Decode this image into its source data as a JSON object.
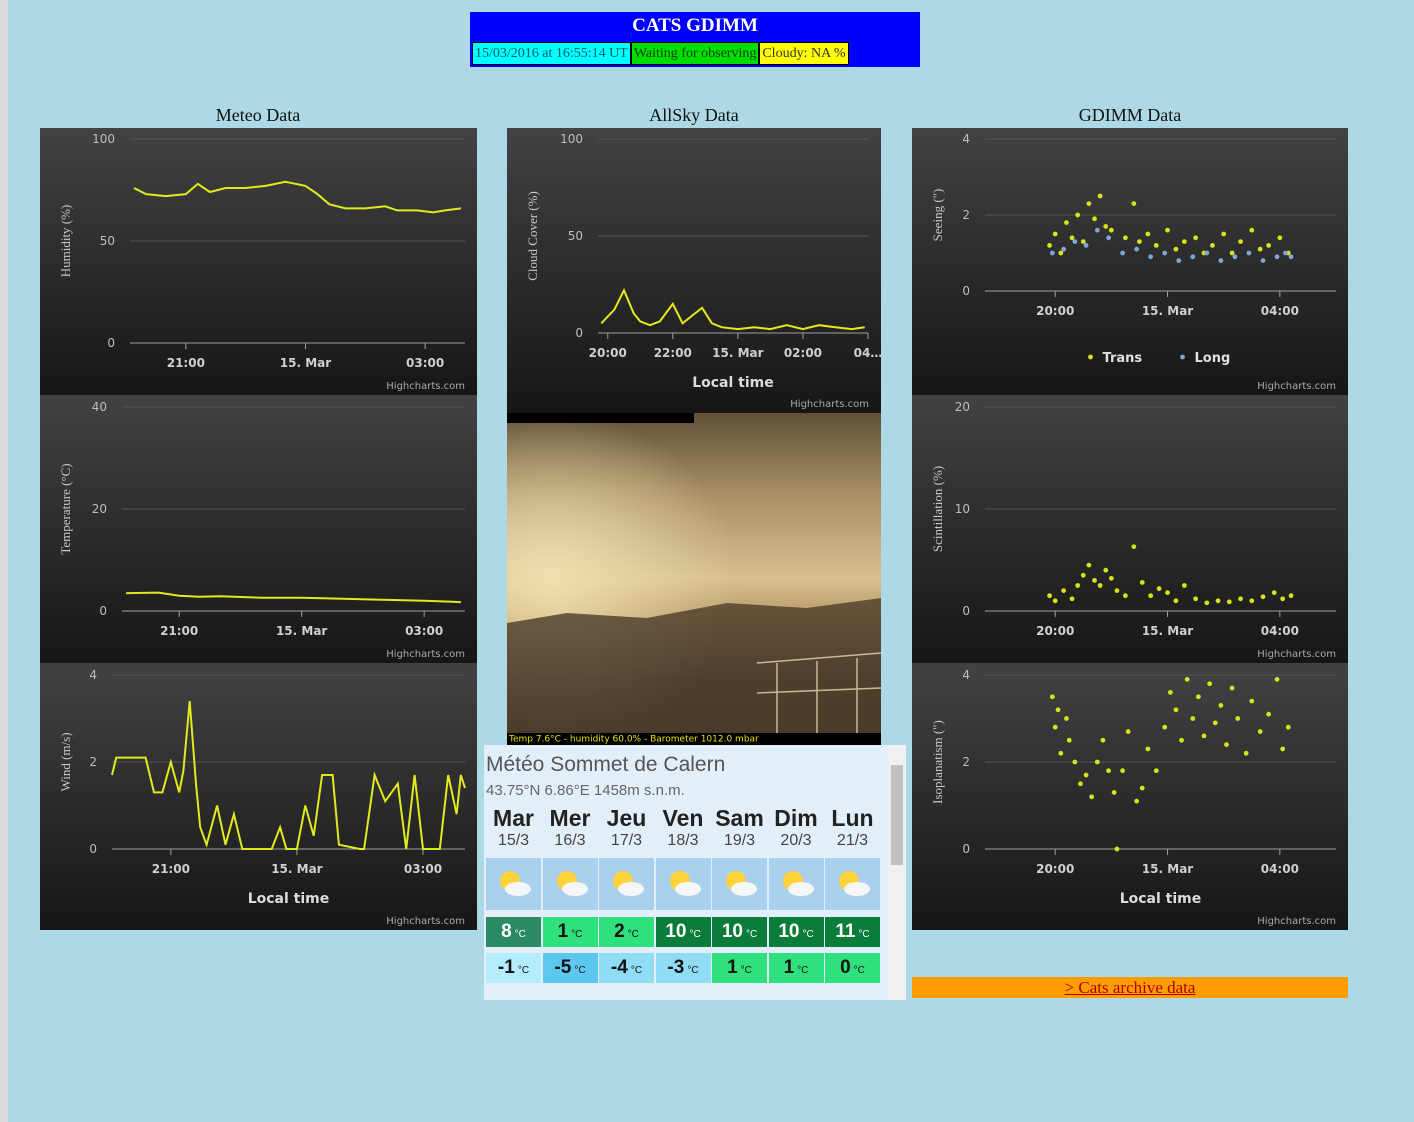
{
  "header": {
    "title": "CATS GDIMM",
    "date": "15/03/2016 at 16:55:14 UT",
    "status": "Waiting for observing",
    "cloudy": "Cloudy: NA %"
  },
  "sections": [
    "Meteo Data",
    "AllSky Data",
    "GDIMM Data"
  ],
  "allsky": {
    "caption": "Temp 7.6°C - humidity 60.0% - Barometer 1012.0 mbar"
  },
  "chart_data": [
    {
      "type": "line",
      "y_title": "Humidity (%)",
      "credit": "Highcharts.com",
      "ylim": [
        0,
        100
      ],
      "yticks": [
        0,
        50,
        100
      ],
      "xlim": [
        19.6,
        28
      ],
      "xticks": [
        {
          "value": 21,
          "label": "21:00"
        },
        {
          "value": 24,
          "label": "15. Mar"
        },
        {
          "value": 27,
          "label": "03:00"
        }
      ],
      "series": [
        {
          "color": "#e3ea1c",
          "x": [
            19.7,
            20.0,
            20.5,
            21.0,
            21.3,
            21.6,
            22.0,
            22.5,
            23.0,
            23.5,
            24.0,
            24.3,
            24.6,
            25.0,
            25.5,
            26.0,
            26.3,
            26.8,
            27.2,
            27.5,
            27.9
          ],
          "values": [
            76,
            73,
            72,
            73,
            78,
            74,
            76,
            76,
            77,
            79,
            77,
            73,
            68,
            66,
            66,
            67,
            65,
            65,
            64,
            65,
            66
          ]
        }
      ]
    },
    {
      "type": "line",
      "y_title": "Temperature (°C)",
      "credit": "Highcharts.com",
      "ylim": [
        0,
        40
      ],
      "yticks": [
        0,
        20,
        40
      ],
      "xlim": [
        19.6,
        28
      ],
      "xticks": [
        {
          "value": 21,
          "label": "21:00"
        },
        {
          "value": 24,
          "label": "15. Mar"
        },
        {
          "value": 27,
          "label": "03:00"
        }
      ],
      "series": [
        {
          "color": "#e3ea1c",
          "x": [
            19.7,
            20.5,
            21.0,
            21.5,
            22.0,
            23.0,
            24.0,
            25.0,
            26.0,
            27.0,
            27.7,
            27.9
          ],
          "values": [
            3.5,
            3.6,
            3.0,
            2.8,
            2.9,
            2.6,
            2.6,
            2.4,
            2.2,
            2.0,
            1.8,
            1.7
          ]
        }
      ]
    },
    {
      "type": "line",
      "y_title": "Wind (m/s)",
      "x_title": "Local time",
      "credit": "Highcharts.com",
      "ylim": [
        0,
        4
      ],
      "yticks": [
        0,
        2,
        4
      ],
      "xlim": [
        19.6,
        28
      ],
      "xticks": [
        {
          "value": 21,
          "label": "21:00"
        },
        {
          "value": 24,
          "label": "15. Mar"
        },
        {
          "value": 27,
          "label": "03:00"
        }
      ],
      "series": [
        {
          "color": "#e3ea1c",
          "x": [
            19.6,
            19.7,
            20.4,
            20.6,
            20.8,
            21.0,
            21.2,
            21.3,
            21.45,
            21.6,
            21.7,
            21.85,
            22.1,
            22.3,
            22.5,
            22.7,
            23.4,
            23.6,
            23.75,
            24.0,
            24.2,
            24.4,
            24.6,
            24.85,
            25.0,
            25.5,
            25.6,
            25.85,
            26.1,
            26.4,
            26.6,
            26.8,
            27.0,
            27.4,
            27.6,
            27.8,
            27.9,
            28.0
          ],
          "values": [
            1.7,
            2.1,
            2.1,
            1.3,
            1.3,
            2.0,
            1.3,
            1.8,
            3.4,
            1.5,
            0.5,
            0.1,
            1.0,
            0.1,
            0.8,
            0,
            0,
            0.5,
            0,
            0,
            1.0,
            0.3,
            1.7,
            1.7,
            0.1,
            0,
            0,
            1.7,
            1.1,
            1.5,
            0,
            1.7,
            0,
            0,
            1.7,
            0.8,
            1.7,
            1.4
          ]
        }
      ]
    },
    {
      "type": "line",
      "y_title": "Cloud Cover (%)",
      "x_title": "Local time",
      "credit": "Highcharts.com",
      "ylim": [
        0,
        100
      ],
      "yticks": [
        0,
        50,
        100
      ],
      "xlim": [
        19.7,
        28
      ],
      "xticks": [
        {
          "value": 20,
          "label": "20:00"
        },
        {
          "value": 22,
          "label": "22:00"
        },
        {
          "value": 24,
          "label": "15. Mar"
        },
        {
          "value": 26,
          "label": "02:00"
        },
        {
          "value": 28,
          "label": "04…"
        }
      ],
      "series": [
        {
          "color": "#e3ea1c",
          "x": [
            19.8,
            20.2,
            20.5,
            20.8,
            21.0,
            21.3,
            21.6,
            22.0,
            22.3,
            22.6,
            22.9,
            23.2,
            23.5,
            24.0,
            24.5,
            25,
            25.5,
            26,
            26.5,
            27,
            27.5,
            27.9
          ],
          "values": [
            5,
            12,
            22,
            10,
            6,
            4,
            6,
            15,
            5,
            9,
            13,
            5,
            3,
            2,
            3,
            2,
            4,
            2,
            4,
            3,
            2,
            3
          ]
        }
      ]
    },
    {
      "type": "scatter",
      "y_title": "Seeing (\")",
      "credit": "Highcharts.com",
      "legend": true,
      "ylim": [
        0,
        4
      ],
      "yticks": [
        0,
        2,
        4
      ],
      "xlim": [
        17.5,
        30
      ],
      "xticks": [
        {
          "value": 20,
          "label": "20:00"
        },
        {
          "value": 24,
          "label": "15. Mar"
        },
        {
          "value": 28,
          "label": "04:00"
        }
      ],
      "series": [
        {
          "name": "Trans",
          "color": "#d8e214",
          "x": [
            19.8,
            20.0,
            20.2,
            20.4,
            20.6,
            20.8,
            21.0,
            21.2,
            21.4,
            21.6,
            21.8,
            22.0,
            22.5,
            22.8,
            23.0,
            23.3,
            23.6,
            24.0,
            24.3,
            24.6,
            25.0,
            25.3,
            25.6,
            26.0,
            26.3,
            26.6,
            27.0,
            27.3,
            27.6,
            28.0,
            28.3
          ],
          "values": [
            1.2,
            1.5,
            1.0,
            1.8,
            1.4,
            2.0,
            1.3,
            2.3,
            1.9,
            2.5,
            1.7,
            1.6,
            1.4,
            2.3,
            1.3,
            1.5,
            1.2,
            1.6,
            1.1,
            1.3,
            1.4,
            1.0,
            1.2,
            1.5,
            1.0,
            1.3,
            1.6,
            1.1,
            1.2,
            1.4,
            1.0
          ]
        },
        {
          "name": "Long",
          "color": "#7ea6d6",
          "x": [
            19.9,
            20.3,
            20.7,
            21.1,
            21.5,
            21.9,
            22.4,
            22.9,
            23.4,
            23.9,
            24.4,
            24.9,
            25.4,
            25.9,
            26.4,
            26.9,
            27.4,
            27.9,
            28.2,
            28.4
          ],
          "values": [
            1.0,
            1.1,
            1.3,
            1.2,
            1.6,
            1.4,
            1.0,
            1.1,
            0.9,
            1.0,
            0.8,
            0.9,
            1.0,
            0.8,
            0.9,
            1.0,
            0.8,
            0.9,
            1.0,
            0.9
          ]
        }
      ]
    },
    {
      "type": "scatter",
      "y_title": "Scintillation (%)",
      "credit": "Highcharts.com",
      "ylim": [
        0,
        20
      ],
      "yticks": [
        0,
        10,
        20
      ],
      "xlim": [
        17.5,
        30
      ],
      "xticks": [
        {
          "value": 20,
          "label": "20:00"
        },
        {
          "value": 24,
          "label": "15. Mar"
        },
        {
          "value": 28,
          "label": "04:00"
        }
      ],
      "series": [
        {
          "color": "#d8e214",
          "x": [
            19.8,
            20.0,
            20.3,
            20.6,
            20.8,
            21.0,
            21.2,
            21.4,
            21.6,
            21.8,
            22.0,
            22.2,
            22.5,
            22.8,
            23.1,
            23.4,
            23.7,
            24.0,
            24.3,
            24.6,
            25.0,
            25.4,
            25.8,
            26.2,
            26.6,
            27.0,
            27.4,
            27.8,
            28.1,
            28.4
          ],
          "values": [
            1.5,
            1.0,
            2.0,
            1.2,
            2.5,
            3.5,
            4.5,
            3.0,
            2.5,
            4.0,
            3.2,
            2.0,
            1.5,
            6.3,
            2.8,
            1.5,
            2.2,
            1.8,
            1.0,
            2.5,
            1.2,
            0.8,
            1.0,
            0.9,
            1.2,
            1.0,
            1.4,
            1.8,
            1.2,
            1.5
          ]
        }
      ]
    },
    {
      "type": "scatter",
      "y_title": "Isoplanatism (\")",
      "x_title": "Local time",
      "credit": "Highcharts.com",
      "ylim": [
        0,
        4
      ],
      "yticks": [
        0,
        2,
        4
      ],
      "xlim": [
        17.5,
        30
      ],
      "xticks": [
        {
          "value": 20,
          "label": "20:00"
        },
        {
          "value": 24,
          "label": "15. Mar"
        },
        {
          "value": 28,
          "label": "04:00"
        }
      ],
      "series": [
        {
          "color": "#d8e214",
          "x": [
            19.9,
            20.0,
            20.1,
            20.2,
            20.4,
            20.5,
            20.7,
            20.9,
            21.1,
            21.3,
            21.5,
            21.7,
            21.9,
            22.1,
            22.2,
            22.4,
            22.6,
            22.9,
            23.1,
            23.3,
            23.6,
            23.9,
            24.1,
            24.3,
            24.5,
            24.7,
            24.9,
            25.1,
            25.3,
            25.5,
            25.7,
            25.9,
            26.1,
            26.3,
            26.5,
            26.8,
            27.0,
            27.3,
            27.6,
            27.9,
            28.1,
            28.3
          ],
          "values": [
            3.5,
            2.8,
            3.2,
            2.2,
            3.0,
            2.5,
            2.0,
            1.5,
            1.7,
            1.2,
            2.0,
            2.5,
            1.8,
            1.3,
            0,
            1.8,
            2.7,
            1.1,
            1.4,
            2.3,
            1.8,
            2.8,
            3.6,
            3.2,
            2.5,
            3.9,
            3.0,
            3.5,
            2.6,
            3.8,
            2.9,
            3.3,
            2.4,
            3.7,
            3.0,
            2.2,
            3.4,
            2.7,
            3.1,
            3.9,
            2.3,
            2.8
          ]
        }
      ]
    }
  ],
  "weather": {
    "title": "Météo Sommet de Calern",
    "location": "43.75°N 6.86°E 1458m s.n.m.",
    "unit": "°C",
    "days": [
      {
        "name": "Mar",
        "date": "15/3",
        "max": 8,
        "min": -1
      },
      {
        "name": "Mer",
        "date": "16/3",
        "max": 1,
        "min": -5
      },
      {
        "name": "Jeu",
        "date": "17/3",
        "max": 2,
        "min": -4
      },
      {
        "name": "Ven",
        "date": "18/3",
        "max": 10,
        "min": -3
      },
      {
        "name": "Sam",
        "date": "19/3",
        "max": 10,
        "min": 1
      },
      {
        "name": "Dim",
        "date": "20/3",
        "max": 10,
        "min": 1
      },
      {
        "name": "Lun",
        "date": "21/3",
        "max": 11,
        "min": 0
      }
    ]
  },
  "archive": {
    "link": "> Cats archive data"
  }
}
